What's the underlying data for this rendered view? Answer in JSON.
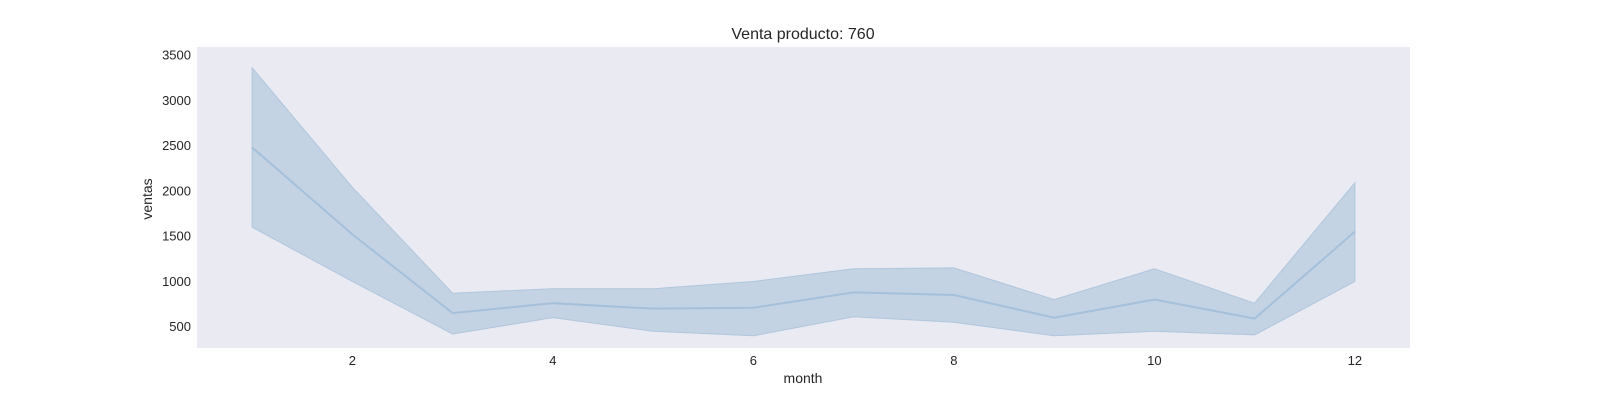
{
  "chart_data": {
    "type": "area",
    "title": "Venta producto: 760",
    "xlabel": "month",
    "ylabel": "ventas",
    "xlim": [
      0.45,
      12.55
    ],
    "ylim": [
      265,
      3590
    ],
    "x_ticks": [
      2,
      4,
      6,
      8,
      10,
      12
    ],
    "y_ticks": [
      500,
      1000,
      1500,
      2000,
      2500,
      3000,
      3500
    ],
    "grid": false,
    "legend": "none",
    "colors": {
      "background": "#eaeaf2",
      "line": "#a6c0da",
      "band": "#c3d3e4",
      "band_edge": "#b0c6dd"
    },
    "series": [
      {
        "x": [
          1,
          2,
          3,
          4,
          5,
          6,
          7,
          8,
          9,
          10,
          11,
          12
        ],
        "values": [
          2480,
          1520,
          650,
          760,
          700,
          710,
          880,
          850,
          600,
          800,
          590,
          1550
        ],
        "lower": [
          1600,
          1000,
          420,
          600,
          450,
          400,
          610,
          550,
          400,
          450,
          410,
          1000
        ],
        "upper": [
          3360,
          2040,
          870,
          920,
          920,
          1000,
          1140,
          1150,
          800,
          1140,
          760,
          2090
        ]
      }
    ]
  }
}
